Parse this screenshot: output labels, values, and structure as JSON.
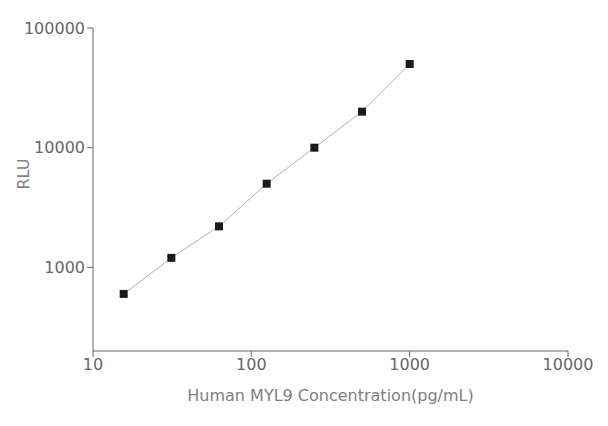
{
  "chart_data": {
    "type": "line",
    "x": [
      15.625,
      31.25,
      62.5,
      125,
      250,
      500,
      1000
    ],
    "series": [
      {
        "type": "line",
        "color": "#b0b0b0",
        "values": [
          600,
          1200,
          2200,
          5000,
          10000,
          20000,
          50000
        ]
      },
      {
        "type": "scatter",
        "color": "#1a1a1a",
        "marker": "square",
        "values": [
          600,
          1200,
          2200,
          5000,
          10000,
          20000,
          50000
        ]
      }
    ],
    "xlabel": "Human MYL9 Concentration(pg/mL)",
    "ylabel": "RLU",
    "xlim": [
      10,
      10000
    ],
    "ylim": [
      200,
      100000
    ],
    "xticks": [
      10,
      100,
      1000,
      10000
    ],
    "yticks": [
      1000,
      10000,
      100000
    ],
    "log": true,
    "grid": false
  }
}
